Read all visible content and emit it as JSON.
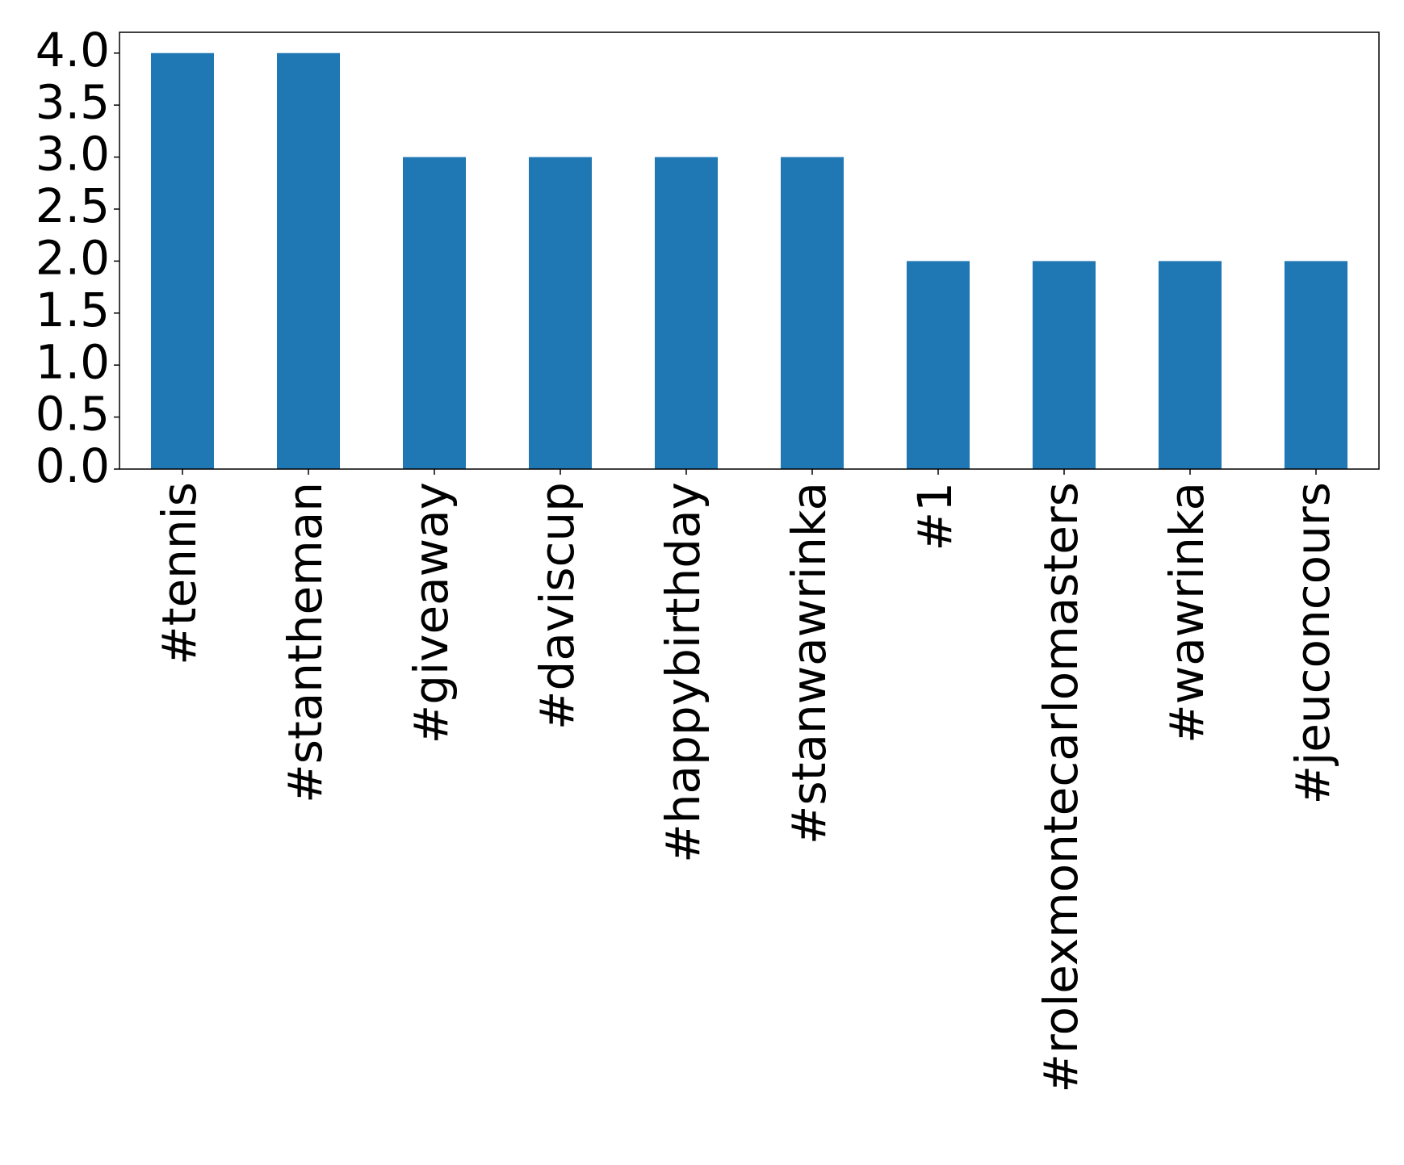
{
  "chart_data": {
    "type": "bar",
    "categories": [
      "#tennis",
      "#stantheman",
      "#giveaway",
      "#daviscup",
      "#happybirthday",
      "#stanwawrinka",
      "#1",
      "#rolexmontecarlomasters",
      "#wawrinka",
      "#jeuconcours"
    ],
    "values": [
      4,
      4,
      3,
      3,
      3,
      3,
      2,
      2,
      2,
      2
    ],
    "color": "#1f77b4",
    "ylim": [
      0,
      4.2
    ],
    "yticks": [
      {
        "value": 0,
        "label": "0.0"
      },
      {
        "value": 0.5,
        "label": "0.5"
      },
      {
        "value": 1,
        "label": "1.0"
      },
      {
        "value": 1.5,
        "label": "1.5"
      },
      {
        "value": 2,
        "label": "2.0"
      },
      {
        "value": 2.5,
        "label": "2.5"
      },
      {
        "value": 3,
        "label": "3.0"
      },
      {
        "value": 3.5,
        "label": "3.5"
      },
      {
        "value": 4,
        "label": "4.0"
      }
    ],
    "grid": false
  }
}
